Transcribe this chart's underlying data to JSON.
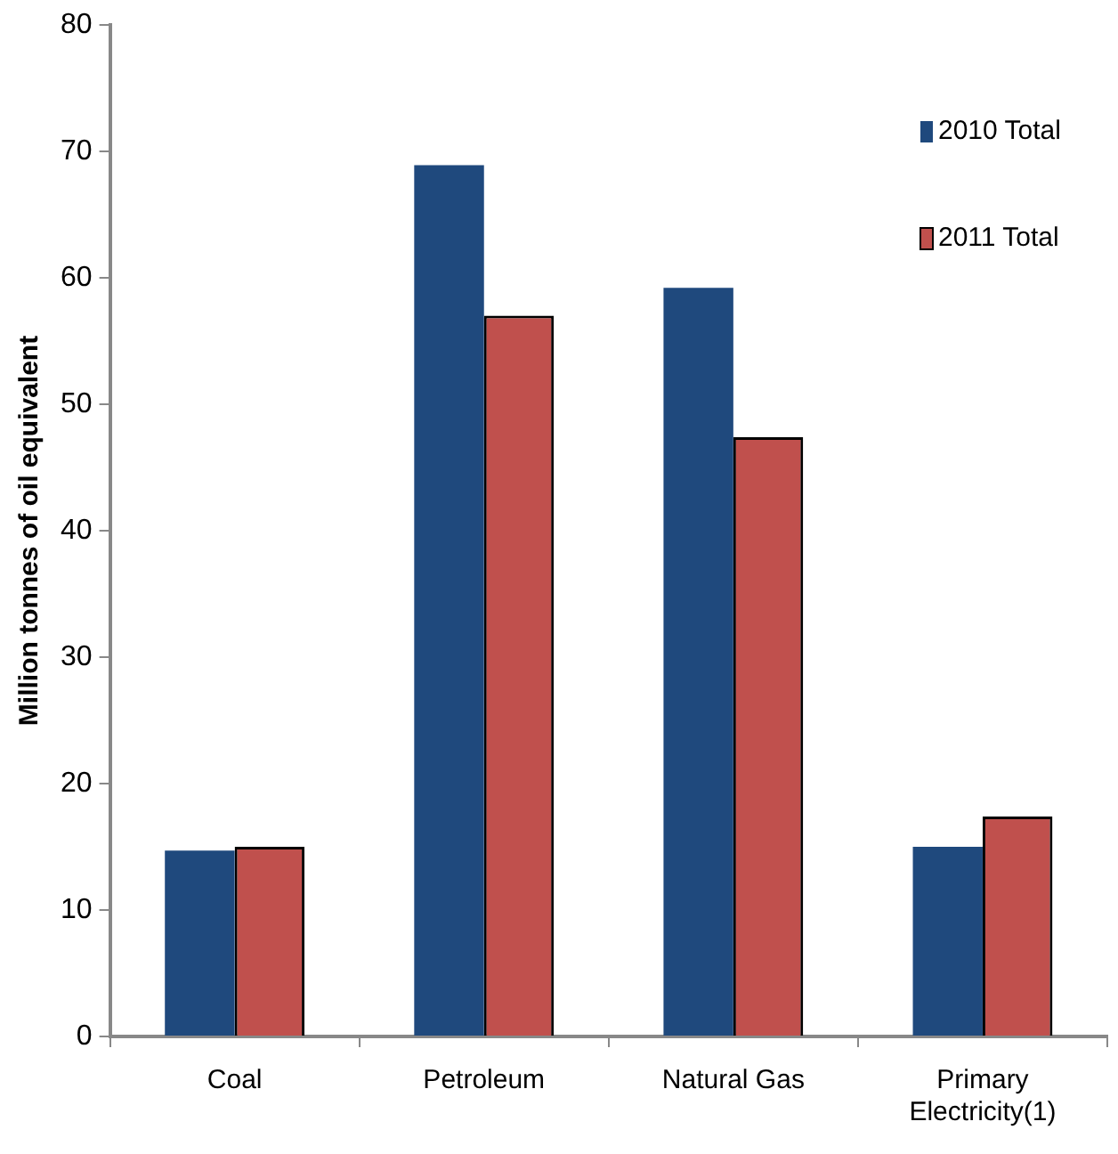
{
  "chart_data": {
    "type": "bar",
    "ylabel": "Million tonnes of oil equivalent",
    "categories": [
      "Coal",
      "Petroleum",
      "Natural Gas",
      "Primary Electricity(1)"
    ],
    "series": [
      {
        "name": "2010 Total",
        "color": "#1f497d",
        "values": [
          14.7,
          68.9,
          59.2,
          15.0
        ]
      },
      {
        "name": "2011 Total",
        "color": "#c0504d",
        "values": [
          15.0,
          57.0,
          47.4,
          17.4
        ]
      }
    ],
    "ylim": [
      0,
      80
    ],
    "yticks": [
      0,
      10,
      20,
      30,
      40,
      50,
      60,
      70,
      80
    ],
    "grid": false,
    "legend": "top right"
  }
}
